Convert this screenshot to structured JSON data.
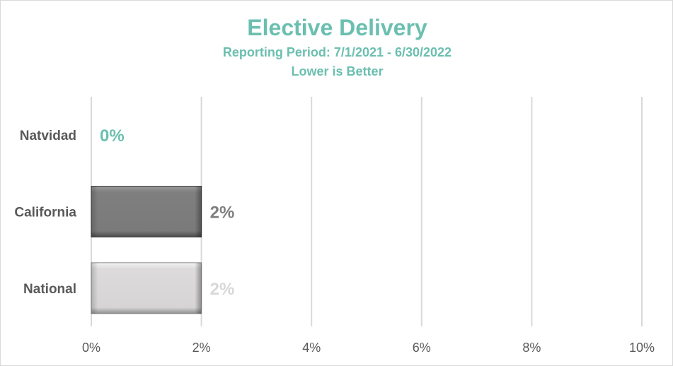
{
  "chart_data": {
    "type": "bar",
    "orientation": "horizontal",
    "title": "Elective Delivery",
    "subtitles": [
      "Reporting Period: 7/1/2021 - 6/30/2022",
      "Lower is Better"
    ],
    "categories": [
      "Natvidad",
      "California",
      "National"
    ],
    "values": [
      0,
      2,
      2
    ],
    "value_labels": [
      "0%",
      "2%",
      "2%"
    ],
    "xlim": [
      0,
      10
    ],
    "x_ticks": [
      0,
      2,
      4,
      6,
      8,
      10
    ],
    "x_tick_labels": [
      "0%",
      "2%",
      "4%",
      "6%",
      "8%",
      "10%"
    ],
    "grid": "vertical",
    "legend": "none",
    "colors": {
      "title": "#6bbfb0",
      "natvidad": "#6bbfb0",
      "california": "#7f7f7f",
      "national": "#d9d7d7",
      "category_label": "#595959",
      "axis_label": "#595959",
      "grid": "#d9d9d9"
    }
  }
}
